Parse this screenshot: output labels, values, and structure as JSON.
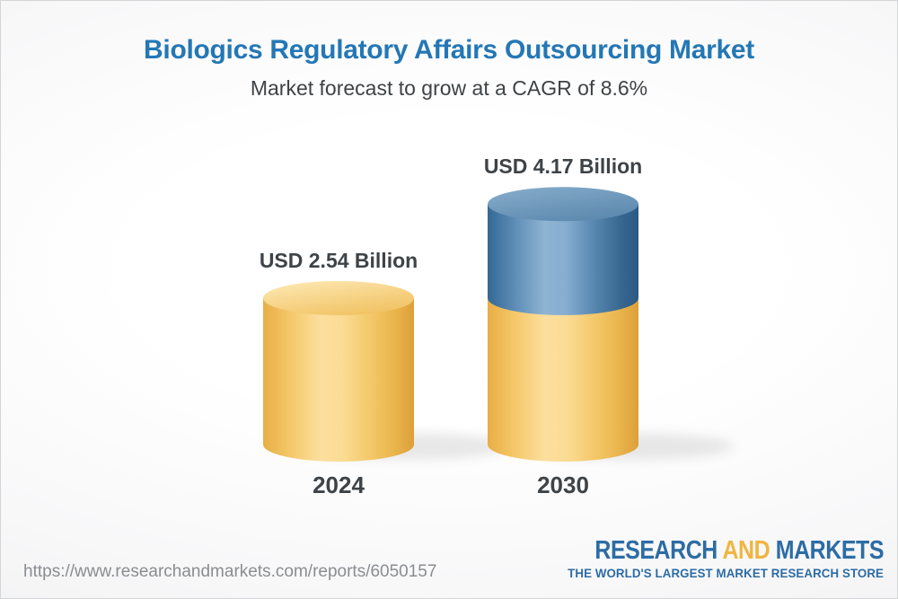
{
  "chart_data": {
    "type": "bar",
    "subtype": "3d-cylinder",
    "title": "Biologics Regulatory Affairs Outsourcing Market",
    "subtitle": "Market forecast to grow at a CAGR of 8.6%",
    "categories": [
      "2024",
      "2030"
    ],
    "values": [
      2.54,
      4.17
    ],
    "value_labels": [
      "USD 2.54 Billion",
      "USD 4.17 Billion"
    ],
    "unit": "USD Billion",
    "cagr_percent": 8.6,
    "legend": "none",
    "grid": "off",
    "colors": {
      "base_segment_gold": "#f6c967",
      "growth_segment_blue": "#5d8db6",
      "title_blue": "#2477b5",
      "label_gray": "#3e4347",
      "logo_blue": "#2d6ca4",
      "logo_gold": "#f0b541"
    }
  },
  "footer": {
    "url": "https://www.researchandmarkets.com/reports/6050157",
    "logo": {
      "word1": "RESEARCH",
      "word2": "AND",
      "word3": "MARKETS",
      "tagline": "THE WORLD'S LARGEST MARKET RESEARCH STORE"
    }
  }
}
